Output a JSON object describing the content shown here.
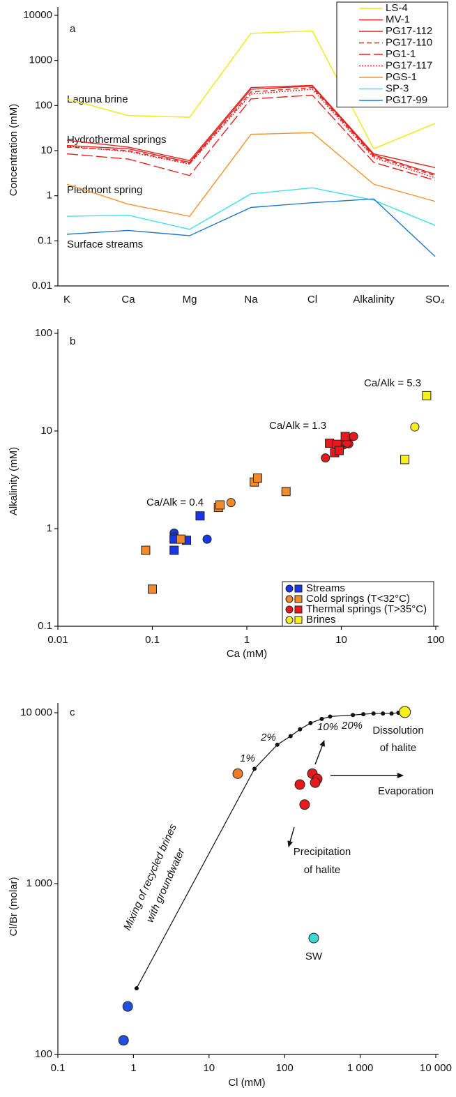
{
  "chart_data": [
    {
      "type": "line",
      "x_categories_axis": true,
      "yscale": "log",
      "ylabel": "Concentration (mM)",
      "categories": [
        "K",
        "Ca",
        "Mg",
        "Na",
        "Cl",
        "Alkalinity",
        "SO₄"
      ],
      "ylim": [
        0.01,
        10000
      ],
      "yticks": [
        10000,
        1000,
        100,
        10,
        1,
        0.1,
        0.01
      ],
      "legend": "upper right",
      "annotations": [
        "a",
        "Laguna brine",
        "Hydrothermal springs",
        "Piedmont spring",
        "Surface streams"
      ],
      "series": [
        {
          "name": "LS-4",
          "color": "#f2e70f",
          "dash": "solid",
          "values": [
            140,
            60,
            55,
            4000,
            4500,
            11,
            40
          ]
        },
        {
          "name": "MV-1",
          "color": "#e3221f",
          "dash": "solid",
          "values": [
            17,
            12,
            6,
            250,
            280,
            8.5,
            4.2
          ]
        },
        {
          "name": "PG17-112",
          "color": "#e3221f",
          "dash": "solid",
          "values": [
            13,
            11,
            5.5,
            230,
            270,
            8,
            3
          ]
        },
        {
          "name": "PG17-110",
          "color": "#e3221f",
          "dash": "dashed",
          "values": [
            12,
            10,
            5.2,
            200,
            250,
            7.5,
            2.8
          ]
        },
        {
          "name": "PG1-1",
          "color": "#e3221f",
          "dash": "longdash",
          "values": [
            8.5,
            6.5,
            2.8,
            140,
            170,
            5.5,
            2.2
          ]
        },
        {
          "name": "PG17-117",
          "color": "#e3221f",
          "dash": "dotted",
          "values": [
            12.5,
            9.5,
            5,
            180,
            230,
            7,
            2.5
          ]
        },
        {
          "name": "PGS-1",
          "color": "#f0922e",
          "dash": "solid",
          "values": [
            1.8,
            0.65,
            0.35,
            23,
            25,
            1.8,
            0.75
          ]
        },
        {
          "name": "SP-3",
          "color": "#3fe0e8",
          "dash": "solid",
          "values": [
            0.35,
            0.37,
            0.18,
            1.1,
            1.5,
            0.8,
            0.22
          ]
        },
        {
          "name": "PG17-99",
          "color": "#1f78c8",
          "dash": "solid",
          "values": [
            0.14,
            0.17,
            0.13,
            0.55,
            0.7,
            0.85,
            0.045
          ]
        }
      ]
    },
    {
      "type": "scatter",
      "xscale": "log",
      "yscale": "log",
      "xlabel": "Ca (mM)",
      "ylabel": "Alkalinity (mM)",
      "xlim": [
        0.01,
        100
      ],
      "xticks": [
        0.01,
        0.1,
        1,
        10,
        100
      ],
      "ylim": [
        0.1,
        100
      ],
      "yticks": [
        0.1,
        1,
        10,
        100
      ],
      "legend": "lower right",
      "annotations": [
        "b",
        "Ca/Alk = 0.4",
        "Ca/Alk = 1.3",
        "Ca/Alk = 5.3"
      ],
      "series": [
        {
          "name": "Streams",
          "color": "#1a37e6",
          "x": [
            0.17,
            0.17,
            0.38,
            0.17,
            0.17,
            0.23,
            0.32
          ],
          "y": [
            0.9,
            0.82,
            0.78,
            0.78,
            0.6,
            0.76,
            1.35
          ],
          "marker": [
            "circle",
            "circle",
            "circle",
            "square",
            "square",
            "square",
            "square"
          ]
        },
        {
          "name": "Cold springs (T<32°C)",
          "color": "#f08a2c",
          "x": [
            0.68,
            0.085,
            0.1,
            0.2,
            0.5,
            0.52,
            1.2,
            1.3,
            2.6
          ],
          "y": [
            1.85,
            0.6,
            0.24,
            0.78,
            1.65,
            1.75,
            3,
            3.3,
            2.4
          ],
          "marker": [
            "circle",
            "square",
            "square",
            "square",
            "square",
            "square",
            "square",
            "square",
            "square"
          ]
        },
        {
          "name": "Thermal springs (T>35°C)",
          "color": "#e8191c",
          "x": [
            6.8,
            10.5,
            11,
            12,
            13.5,
            11.5,
            7.5,
            8.5,
            9,
            11,
            9.5
          ],
          "y": [
            5.3,
            7.2,
            7.6,
            7.4,
            8.8,
            7.5,
            7.5,
            6,
            7.3,
            8.8,
            6.3
          ],
          "marker": [
            "circle",
            "circle",
            "circle",
            "circle",
            "circle",
            "circle",
            "square",
            "square",
            "square",
            "square",
            "square"
          ]
        },
        {
          "name": "Brines",
          "color": "#f6f01e",
          "x": [
            60,
            47,
            80
          ],
          "y": [
            11,
            5.1,
            23
          ],
          "marker": [
            "circle",
            "square",
            "square"
          ]
        }
      ]
    },
    {
      "type": "scatter",
      "xscale": "log",
      "yscale": "log",
      "xlabel": "Cl (mM)",
      "ylabel": "Cl/Br (molar)",
      "xlim": [
        0.1,
        10000
      ],
      "xticks": [
        0.1,
        1,
        10,
        100,
        {
          "value": 1000,
          "label": "1 000"
        },
        {
          "value": 10000,
          "label": "10 000"
        }
      ],
      "ylim": [
        100,
        10000
      ],
      "yticks": [
        100,
        {
          "value": 1000,
          "label": "1 000"
        },
        {
          "value": 10000,
          "label": "10 000"
        }
      ],
      "annotations": [
        "c",
        "1%",
        "2%",
        "10%",
        "20%",
        "Dissolution",
        "of halite",
        "Evaporation",
        "Precipitation",
        "of halite",
        "SW",
        "Mixing of recycled brines",
        "with groundwater"
      ],
      "series": [
        {
          "color": "#111111",
          "line": true,
          "size": 3,
          "x": [
            1.1,
            40,
            80,
            120,
            160,
            220,
            310,
            400,
            800,
            1100,
            1500,
            2000,
            2600,
            3200
          ],
          "y": [
            244,
            4700,
            6500,
            7300,
            8000,
            8700,
            9200,
            9500,
            9700,
            9800,
            9900,
            9900,
            9900,
            10000
          ]
        },
        {
          "color": "#1f4fe0",
          "size": 7,
          "x": [
            0.74,
            0.84
          ],
          "y": [
            121,
            191
          ]
        },
        {
          "color": "#f07a28",
          "size": 7,
          "x": [
            24
          ],
          "y": [
            4400
          ]
        },
        {
          "color": "#e41a1c",
          "size": 7,
          "x": [
            233,
            270,
            254,
            159,
            184
          ],
          "y": [
            4400,
            4100,
            3900,
            3800,
            2900
          ]
        },
        {
          "color": "#f5ef1a",
          "size": 8,
          "x": [
            3900
          ],
          "y": [
            10100
          ]
        },
        {
          "color": "#3fd6d6",
          "size": 7,
          "x": [
            243
          ],
          "y": [
            480
          ]
        }
      ]
    }
  ]
}
